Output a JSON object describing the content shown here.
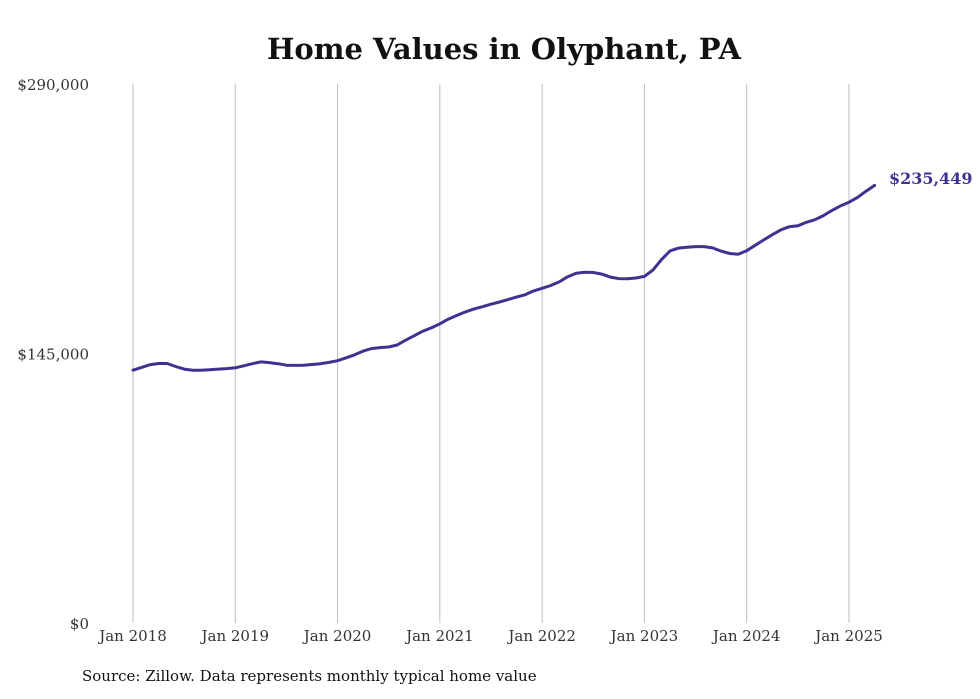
{
  "colors": {
    "line": "#3d3390",
    "grid": "#bdbdbd",
    "text": "#333333"
  },
  "chart_data": {
    "type": "line",
    "title": "Home Values in Olyphant, PA",
    "source": "Source: Zillow. Data represents monthly typical home value",
    "grid": "vertical",
    "ylim": [
      0,
      290000
    ],
    "y_ticks": [
      {
        "value": 0,
        "label": "$0"
      },
      {
        "value": 145000,
        "label": "$145,000"
      },
      {
        "value": 290000,
        "label": "$290,000"
      }
    ],
    "x_ticks": [
      {
        "value": 2018,
        "label": "Jan 2018"
      },
      {
        "value": 2019,
        "label": "Jan 2019"
      },
      {
        "value": 2020,
        "label": "Jan 2020"
      },
      {
        "value": 2021,
        "label": "Jan 2021"
      },
      {
        "value": 2022,
        "label": "Jan 2022"
      },
      {
        "value": 2023,
        "label": "Jan 2023"
      },
      {
        "value": 2024,
        "label": "Jan 2024"
      },
      {
        "value": 2025,
        "label": "Jan 2025"
      }
    ],
    "end_label": "$235,449",
    "series": [
      {
        "x": [
          "2018-01",
          "2018-02",
          "2018-03",
          "2018-04",
          "2018-05",
          "2018-06",
          "2018-07",
          "2018-08",
          "2018-09",
          "2018-10",
          "2018-11",
          "2018-12",
          "2019-01",
          "2019-02",
          "2019-03",
          "2019-04",
          "2019-05",
          "2019-06",
          "2019-07",
          "2019-08",
          "2019-09",
          "2019-10",
          "2019-11",
          "2019-12",
          "2020-01",
          "2020-02",
          "2020-03",
          "2020-04",
          "2020-05",
          "2020-06",
          "2020-07",
          "2020-08",
          "2020-09",
          "2020-10",
          "2020-11",
          "2020-12",
          "2021-01",
          "2021-02",
          "2021-03",
          "2021-04",
          "2021-05",
          "2021-06",
          "2021-07",
          "2021-08",
          "2021-09",
          "2021-10",
          "2021-11",
          "2021-12",
          "2022-01",
          "2022-02",
          "2022-03",
          "2022-04",
          "2022-05",
          "2022-06",
          "2022-07",
          "2022-08",
          "2022-09",
          "2022-10",
          "2022-11",
          "2022-12",
          "2023-01",
          "2023-02",
          "2023-03",
          "2023-04",
          "2023-05",
          "2023-06",
          "2023-07",
          "2023-08",
          "2023-09",
          "2023-10",
          "2023-11",
          "2023-12",
          "2024-01",
          "2024-02",
          "2024-03",
          "2024-04",
          "2024-05",
          "2024-06",
          "2024-07",
          "2024-08",
          "2024-09",
          "2024-10",
          "2024-11",
          "2024-12",
          "2025-01",
          "2025-02",
          "2025-03",
          "2025-04"
        ],
        "y": [
          136000,
          137500,
          139000,
          139600,
          139600,
          138000,
          136600,
          136000,
          136000,
          136300,
          136600,
          136900,
          137300,
          138400,
          139500,
          140500,
          140100,
          139500,
          138700,
          138600,
          138700,
          139100,
          139500,
          140200,
          141100,
          142700,
          144300,
          146300,
          147700,
          148200,
          148500,
          149600,
          152200,
          154600,
          157000,
          158800,
          161000,
          163500,
          165500,
          167400,
          169000,
          170200,
          171500,
          172700,
          174000,
          175400,
          176600,
          178700,
          180100,
          181600,
          183500,
          186300,
          188200,
          188700,
          188600,
          187700,
          186100,
          185300,
          185200,
          185600,
          186500,
          190000,
          195500,
          200200,
          201700,
          202200,
          202500,
          202500,
          201800,
          200100,
          198800,
          198400,
          200300,
          203200,
          206100,
          208900,
          211500,
          213200,
          213700,
          215600,
          217000,
          219200,
          222000,
          224400,
          226400,
          229000,
          232300,
          235449
        ]
      }
    ]
  }
}
